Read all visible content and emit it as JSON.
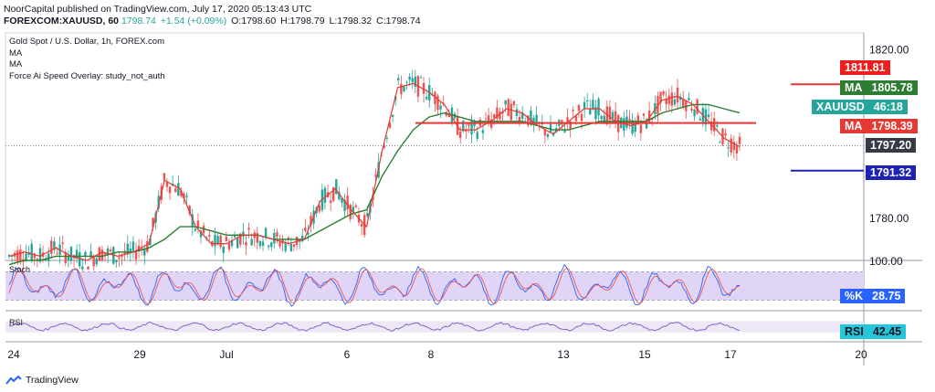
{
  "header": {
    "publisher": "NoorCapital",
    "published_text": "published on TradingView.com, July 17, 2020 05:13:43 UTC",
    "symbol": "FOREXCOM:XAUUSD, 60",
    "ohlc": {
      "change": "+1.54 (+0.09%)",
      "o": "O:1798.60",
      "h": "H:1798.79",
      "l": "L:1798.32",
      "c": "C:1798.74",
      "close_value": "1798.74"
    }
  },
  "legend": {
    "title": "Gold Spot / U.S. Dollar, 1h, FOREX.com",
    "ma1": "MA",
    "ma2": "MA",
    "overlay": "Force Ai Speed Overlay: study_not_auth"
  },
  "panes": {
    "stoch_label": "Stoch",
    "rsi_label": "RSI"
  },
  "price_tags": [
    {
      "name": "",
      "value": "1811.81",
      "bg": "#ef1e1e",
      "fg": "#ffffff"
    },
    {
      "name": "MA",
      "value": "1805.78",
      "bg": "#2e7d32",
      "fg": "#ffffff"
    },
    {
      "name": "XAUUSD",
      "value": "46:18",
      "bg": "#26a69a",
      "fg": "#ffffff"
    },
    {
      "name": "MA",
      "value": "1798.39",
      "bg": "#e53935",
      "fg": "#ffffff"
    },
    {
      "name": "",
      "value": "1797.20",
      "bg": "#363a45",
      "fg": "#ffffff"
    },
    {
      "name": "",
      "value": "1791.32",
      "bg": "#1e22b4",
      "fg": "#ffffff"
    }
  ],
  "indicator_tags": [
    {
      "name": "%K",
      "value": "28.75",
      "bg": "#2962ff",
      "fg": "#ffffff"
    },
    {
      "name": "RSI",
      "value": "42.45",
      "bg": "#26c6da",
      "fg": "#131722"
    }
  ],
  "colors": {
    "candle_up": "#26a69a",
    "candle_down": "#ef5350",
    "ma_fast": "#e53935",
    "ma_slow": "#2e7d32",
    "resistance": "#e53935",
    "support_marker": "#1e22b4",
    "stoch_band": "#e1d5f7",
    "rsi_band": "#ede7f6"
  },
  "chart_data": {
    "type": "line",
    "title": "Gold Spot / U.S. Dollar, 1h, FOREX.com",
    "price_axis": [
      "1820.00",
      "1811.81",
      "1805.78",
      "1798.39",
      "1797.20",
      "1791.32",
      "1780.00"
    ],
    "ylim": [
      1770,
      1824
    ],
    "x_ticks": [
      "24",
      "29",
      "Jul",
      "6",
      "8",
      "13",
      "15",
      "17",
      "20"
    ],
    "series": [
      {
        "name": "MA",
        "role": "fast",
        "values": [
          1771,
          1772,
          1771,
          1773,
          1771,
          1770,
          1772,
          1771,
          1772,
          1774,
          1789,
          1787,
          1778,
          1774,
          1774,
          1776,
          1776,
          1775,
          1774,
          1775,
          1784,
          1787,
          1782,
          1778,
          1796,
          1811,
          1812,
          1810,
          1807,
          1801,
          1801,
          1803,
          1806,
          1805,
          1802,
          1800,
          1803,
          1806,
          1806,
          1803,
          1802,
          1803,
          1808,
          1809,
          1807,
          1803,
          1799,
          1797
        ]
      },
      {
        "name": "MA",
        "role": "slow",
        "values": [
          1769,
          1770,
          1770,
          1771,
          1771,
          1771,
          1771,
          1772,
          1772,
          1773,
          1775,
          1778,
          1778,
          1777,
          1776,
          1776,
          1776,
          1775,
          1775,
          1775,
          1777,
          1779,
          1781,
          1782,
          1790,
          1796,
          1801,
          1804,
          1805,
          1804,
          1803,
          1803,
          1803,
          1803,
          1802,
          1801,
          1801,
          1802,
          1803,
          1803,
          1803,
          1803,
          1805,
          1806,
          1807,
          1807,
          1806,
          1805
        ]
      }
    ],
    "levels": [
      {
        "label": "1811.81",
        "value": 1811.81
      },
      {
        "label": "1791.32",
        "value": 1791.32
      },
      {
        "label": "resistance",
        "value": 1802.6
      },
      {
        "label": "1797.20",
        "value": 1797.2
      }
    ],
    "indicators": {
      "stoch": {
        "label": "Stoch",
        "upper": 80,
        "lower": 20,
        "level_label": "100.00",
        "k_value": "28.75"
      },
      "rsi": {
        "label": "RSI",
        "value": "42.45"
      }
    }
  }
}
